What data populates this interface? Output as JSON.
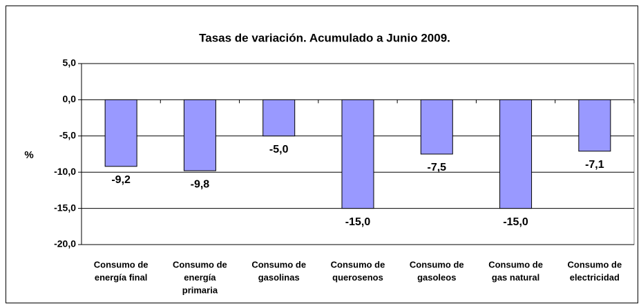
{
  "chart_data": {
    "type": "bar",
    "title": "Tasas de variación. Acumulado a Junio 2009.",
    "y_label": "%",
    "categories": [
      [
        "Consumo de",
        "energía final"
      ],
      [
        "Consumo de",
        "energía",
        "primaria"
      ],
      [
        "Consumo de",
        "gasolinas"
      ],
      [
        "Consumo de",
        "querosenos"
      ],
      [
        "Consumo de",
        "gasoleos"
      ],
      [
        "Consumo de",
        "gas natural"
      ],
      [
        "Consumo de",
        "electricidad"
      ]
    ],
    "values": [
      -9.2,
      -9.8,
      -5.0,
      -15.0,
      -7.5,
      -15.0,
      -7.1
    ],
    "value_labels": [
      "-9,2",
      "-9,8",
      "-5,0",
      "-15,0",
      "-7,5",
      "-15,0",
      "-7,1"
    ],
    "color": "#9999ff",
    "ylim": [
      -20,
      5
    ],
    "yticks": [
      {
        "value": -20,
        "label": "-20,0"
      },
      {
        "value": -15,
        "label": "-15,0"
      },
      {
        "value": -10,
        "label": "-10,0"
      },
      {
        "value": -5,
        "label": "-5,0"
      },
      {
        "value": 0,
        "label": "0,0"
      },
      {
        "value": 5,
        "label": "5,0"
      }
    ],
    "grid": true
  }
}
